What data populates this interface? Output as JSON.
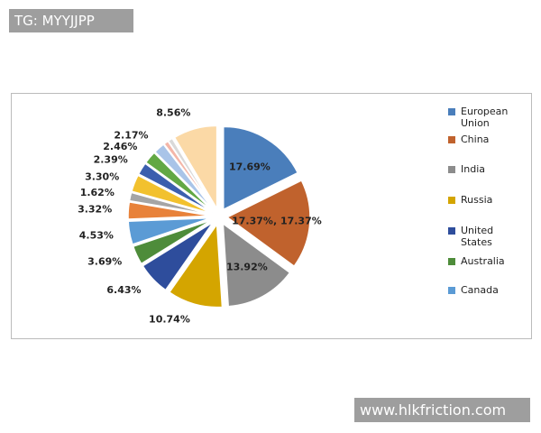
{
  "watermarks": {
    "top_left": "TG: MYYJJPP",
    "bottom_right": "www.hlkfriction.com"
  },
  "chart_data": {
    "type": "pie",
    "categories": [
      "European Union",
      "China",
      "India",
      "Russia",
      "United States",
      "Australia",
      "Canada",
      null,
      null,
      null,
      null,
      null,
      null,
      null,
      null,
      null
    ],
    "values": [
      17.69,
      17.37,
      13.92,
      10.74,
      6.43,
      3.69,
      4.53,
      3.32,
      1.62,
      3.3,
      2.39,
      2.46,
      2.17,
      0.9,
      0.91,
      8.56
    ],
    "value_labels": [
      "17.69%",
      "17.37%, 17.37%",
      "13.92%",
      "10.74%",
      "6.43%",
      "3.69%",
      "4.53%",
      "3.32%",
      "1.62%",
      "3.30%",
      "2.39%",
      "2.46%",
      "2.17%",
      null,
      null,
      "8.56%"
    ],
    "colors": [
      "#4a7ebb",
      "#c0622d",
      "#8c8c8c",
      "#d4a500",
      "#2e4d9c",
      "#4e8c3a",
      "#5b9bd5",
      "#e8823a",
      "#a5a5a5",
      "#f2c12e",
      "#3b5fae",
      "#62a844",
      "#a9c4e8",
      "#f4b6a8",
      "#d9d9d9",
      "#fbd9a6"
    ],
    "legend": "right"
  }
}
